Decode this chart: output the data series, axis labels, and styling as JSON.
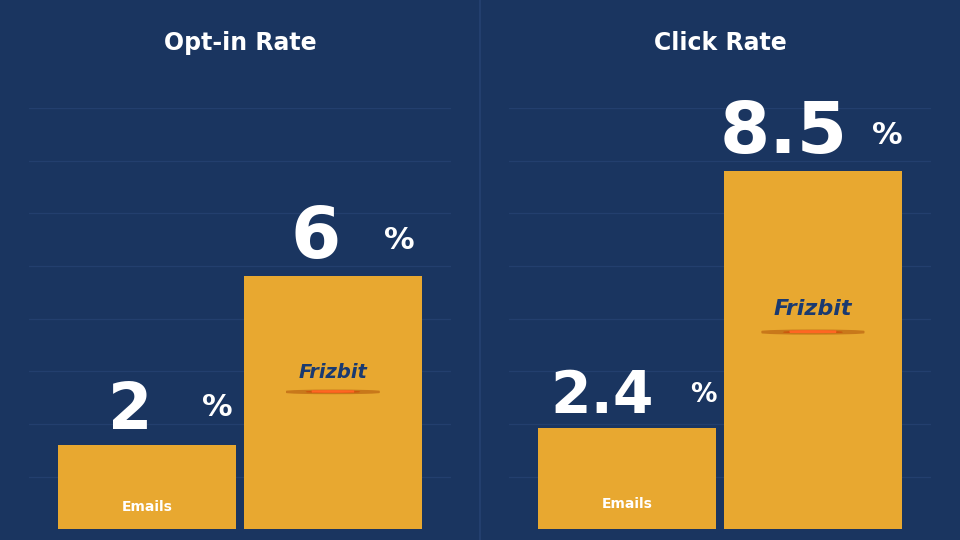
{
  "background_color": "#1a3560",
  "bar_color": "#e8a830",
  "grid_color": "#233f6e",
  "text_color_white": "#ffffff",
  "frizbit_text_color": "#1a3a70",
  "left_title": "Opt-in Rate",
  "right_title": "Click Rate",
  "left_bars": {
    "emails_val": 2.0,
    "frizbit_val": 6.0,
    "emails_label": "2",
    "frizbit_label": "6"
  },
  "right_bars": {
    "emails_val": 2.4,
    "frizbit_val": 8.5,
    "emails_label": "2.4",
    "frizbit_label": "8.5"
  },
  "ylim": [
    0,
    10
  ],
  "divider_color": "#233f6e",
  "n_gridlines": 8
}
